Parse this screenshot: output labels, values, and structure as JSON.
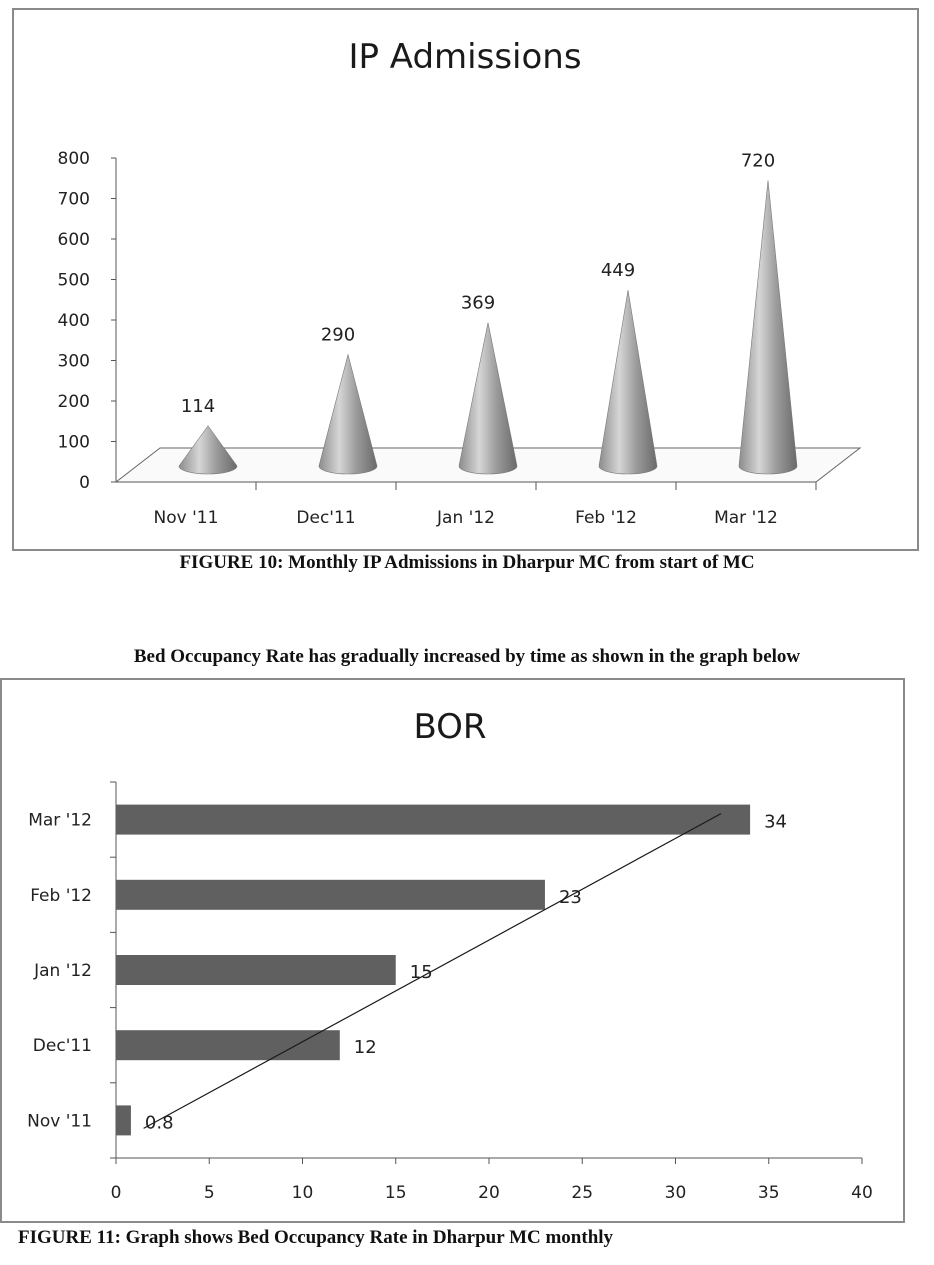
{
  "chart_data": [
    {
      "type": "bar",
      "title": "IP Admissions",
      "categories": [
        "Nov '11",
        "Dec'11",
        "Jan '12",
        "Feb '12",
        "Mar '12"
      ],
      "values": [
        114,
        290,
        369,
        449,
        720
      ],
      "y_ticks": [
        "0",
        "100",
        "200",
        "300",
        "400",
        "500",
        "600",
        "700",
        "800"
      ],
      "ylim": [
        0,
        800
      ],
      "data_labels": [
        "114",
        "290",
        "369",
        "449",
        "720"
      ],
      "bar_style": "cone-3d",
      "grid": false,
      "legend": "none"
    },
    {
      "type": "bar",
      "orientation": "horizontal",
      "title": "BOR",
      "categories": [
        "Nov '11",
        "Dec'11",
        "Jan '12",
        "Feb '12",
        "Mar '12"
      ],
      "values": [
        0.8,
        12,
        15,
        23,
        34
      ],
      "x_ticks": [
        "0",
        "5",
        "10",
        "15",
        "20",
        "25",
        "30",
        "35",
        "40"
      ],
      "xlim": [
        0,
        40
      ],
      "data_labels": [
        "0.8",
        "12",
        "15",
        "23",
        "34"
      ],
      "trendline": "linear",
      "grid": false,
      "legend": "none",
      "colors": {
        "bar": "#606060",
        "trendline": "#1a1a1a"
      }
    }
  ],
  "text": {
    "caption_fig10": "FIGURE 10: Monthly IP Admissions in Dharpur MC from start of MC",
    "intro": "Bed Occupancy Rate has gradually increased by time as shown in the graph below",
    "caption_fig11": "FIGURE 11: Graph shows Bed Occupancy Rate in Dharpur MC monthly"
  }
}
